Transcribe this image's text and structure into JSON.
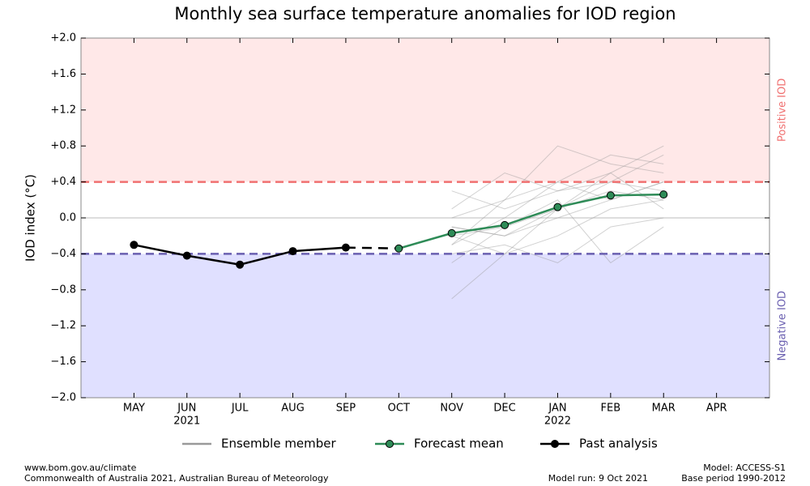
{
  "chart_data": {
    "type": "line",
    "title": "Monthly sea surface temperature anomalies for IOD region",
    "y_label": "IOD index (°C)",
    "categories": [
      "MAY",
      "JUN",
      "JUL",
      "AUG",
      "SEP",
      "OCT",
      "NOV",
      "DEC",
      "JAN",
      "FEB",
      "MAR",
      "APR"
    ],
    "category_years": [
      null,
      "2021",
      null,
      null,
      null,
      null,
      null,
      null,
      "2022",
      null,
      null,
      null
    ],
    "ylim": [
      -2.0,
      2.0
    ],
    "yticks": [
      {
        "value": 2.0,
        "label": "+2.0"
      },
      {
        "value": 1.6,
        "label": "+1.6"
      },
      {
        "value": 1.2,
        "label": "+1.2"
      },
      {
        "value": 0.8,
        "label": "+0.8"
      },
      {
        "value": 0.4,
        "label": "+0.4"
      },
      {
        "value": 0,
        "label": "0.0"
      },
      {
        "value": -0.4,
        "label": "−0.4"
      },
      {
        "value": -0.8,
        "label": "−0.8"
      },
      {
        "value": -1.2,
        "label": "−1.2"
      },
      {
        "value": -1.6,
        "label": "−1.6"
      },
      {
        "value": -2.0,
        "label": "−2.0"
      }
    ],
    "thresholds": [
      {
        "value": 0.4,
        "label": "Positive IOD",
        "color": "#f07070",
        "fill": "#ffe8e8"
      },
      {
        "value": -0.4,
        "label": "Negative IOD",
        "color": "#6a5fb0",
        "fill": "#e0e0ff"
      }
    ],
    "ensemble": {
      "name": "Ensemble member",
      "color": "#999999",
      "members": [
        [
          null,
          null,
          null,
          null,
          null,
          null,
          -0.2,
          -0.1,
          0.1,
          0.3,
          0.2
        ],
        [
          null,
          null,
          null,
          null,
          null,
          null,
          -0.3,
          0.0,
          0.4,
          0.7,
          0.6
        ],
        [
          null,
          null,
          null,
          null,
          null,
          null,
          -0.9,
          -0.4,
          -0.2,
          0.1,
          0.2
        ],
        [
          null,
          null,
          null,
          null,
          null,
          null,
          0.1,
          0.5,
          0.3,
          0.5,
          0.8
        ],
        [
          null,
          null,
          null,
          null,
          null,
          null,
          -0.1,
          -0.2,
          0.0,
          0.2,
          0.4
        ],
        [
          null,
          null,
          null,
          null,
          null,
          null,
          -0.4,
          -0.3,
          -0.5,
          -0.1,
          0.0
        ],
        [
          null,
          null,
          null,
          null,
          null,
          null,
          0.0,
          0.2,
          0.8,
          0.6,
          0.5
        ],
        [
          null,
          null,
          null,
          null,
          null,
          null,
          -0.2,
          -0.4,
          0.1,
          0.4,
          0.3
        ],
        [
          null,
          null,
          null,
          null,
          null,
          null,
          -0.5,
          -0.1,
          0.2,
          -0.5,
          -0.1
        ],
        [
          null,
          null,
          null,
          null,
          null,
          null,
          0.3,
          0.1,
          0.3,
          0.4,
          0.7
        ],
        [
          null,
          null,
          null,
          null,
          null,
          null,
          -0.1,
          -0.2,
          0.1,
          0.5,
          0.1
        ],
        [
          null,
          null,
          null,
          null,
          null,
          null,
          -0.3,
          0.2,
          0.4,
          0.2,
          0.4
        ]
      ]
    },
    "series": [
      {
        "name": "Forecast mean",
        "color": "#2e8b57",
        "values": [
          null,
          null,
          null,
          null,
          null,
          -0.34,
          -0.17,
          -0.08,
          0.12,
          0.25,
          0.26,
          null
        ]
      },
      {
        "name": "Past analysis",
        "color": "#000000",
        "values": [
          -0.3,
          -0.42,
          -0.52,
          -0.37,
          -0.33,
          null,
          null,
          null,
          null,
          null,
          null,
          null
        ]
      }
    ],
    "footer": {
      "left": [
        "www.bom.gov.au/climate",
        "Commonwealth of Australia 2021, Australian Bureau of Meteorology"
      ],
      "middle": "Model run: 9 Oct 2021",
      "right": [
        "Model: ACCESS-S1",
        "Base period 1990-2012"
      ]
    }
  }
}
